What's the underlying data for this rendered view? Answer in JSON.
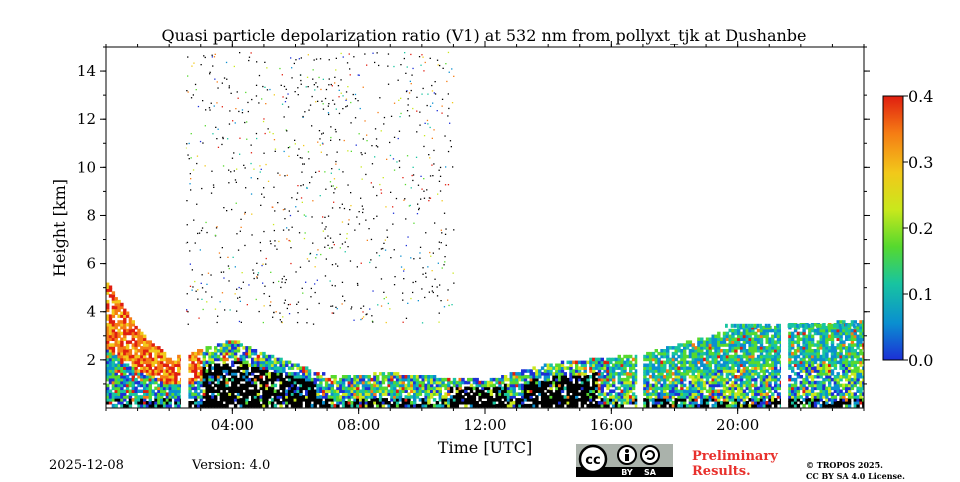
{
  "chart_data": {
    "type": "heatmap",
    "title": "Quasi particle depolarization ratio (V1) at 532 nm from pollyxt_tjk at Dushanbe",
    "xlabel": "Time [UTC]",
    "ylabel": "Height [km]",
    "x_unit": "hours UTC",
    "xlim": [
      0,
      24
    ],
    "ylim": [
      0,
      15
    ],
    "x_ticks": [
      {
        "value": 4,
        "label": "04:00"
      },
      {
        "value": 8,
        "label": "08:00"
      },
      {
        "value": 12,
        "label": "12:00"
      },
      {
        "value": 16,
        "label": "16:00"
      },
      {
        "value": 20,
        "label": "20:00"
      }
    ],
    "y_ticks": [
      {
        "value": 2,
        "label": "2"
      },
      {
        "value": 4,
        "label": "4"
      },
      {
        "value": 6,
        "label": "6"
      },
      {
        "value": 8,
        "label": "8"
      },
      {
        "value": 10,
        "label": "10"
      },
      {
        "value": 12,
        "label": "12"
      },
      {
        "value": 14,
        "label": "14"
      }
    ],
    "colorbar": {
      "range": [
        0.0,
        0.4
      ],
      "ticks": [
        {
          "value": 0.0,
          "label": "0.0"
        },
        {
          "value": 0.1,
          "label": "0.1"
        },
        {
          "value": 0.2,
          "label": "0.2"
        },
        {
          "value": 0.3,
          "label": "0.3"
        },
        {
          "value": 0.4,
          "label": "0.4"
        }
      ],
      "colors": [
        "#1c2fd6",
        "#0a8fd0",
        "#18c4a0",
        "#56d92e",
        "#c9e81c",
        "#f2c81a",
        "#f57c14",
        "#e01e10"
      ]
    },
    "gaps_hours": [
      2.45,
      16.9,
      21.45
    ],
    "black_region_hours": [
      [
        3.0,
        6.6
      ],
      [
        10.8,
        12.6
      ],
      [
        13.2,
        15.5
      ]
    ],
    "aerosol_layer_top_km": [
      [
        0,
        5.2
      ],
      [
        1,
        3.2
      ],
      [
        2,
        2.0
      ],
      [
        4,
        2.8
      ],
      [
        5,
        2.2
      ],
      [
        7,
        1.3
      ],
      [
        9,
        1.4
      ],
      [
        12,
        1.1
      ],
      [
        14,
        1.8
      ],
      [
        17,
        2.2
      ],
      [
        20,
        3.3
      ],
      [
        24,
        3.6
      ]
    ]
  },
  "footer": {
    "date": "2025-12-08",
    "version": "Version: 4.0",
    "preliminary_line1": "Preliminary",
    "preliminary_line2": "Results.",
    "copyright_line1": "© TROPOS 2025.",
    "copyright_line2": "CC BY SA 4.0 License.",
    "cc_by": "BY",
    "cc_sa": "SA"
  }
}
